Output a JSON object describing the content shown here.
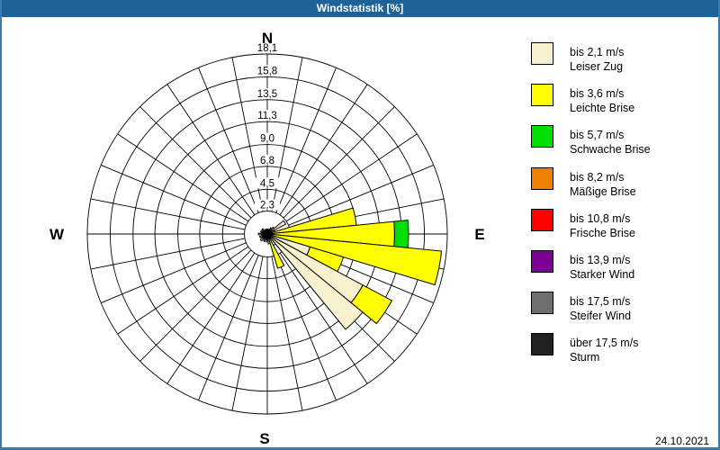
{
  "title_bar": {
    "title": "Windstatistik [%]"
  },
  "footer": {
    "date": "24.10.2021"
  },
  "chart_data": {
    "type": "windrose",
    "title": "Windstatistik [%]",
    "units": "%",
    "sector_width_deg": 11.25,
    "rmax": 18.1,
    "ring_values": [
      2.3,
      4.5,
      6.8,
      9.0,
      11.3,
      13.5,
      15.8,
      18.1
    ],
    "ring_labels": [
      "2,3",
      "4,5",
      "6,8",
      "9,0",
      "11,3",
      "13,5",
      "15,8",
      "18,1"
    ],
    "compass_labels": {
      "n": "N",
      "e": "E",
      "s": "S",
      "w": "W"
    },
    "grid_line_step_deg": 11.25,
    "legend_position": "right",
    "speed_classes": [
      {
        "speed": "bis 2,1 m/s",
        "name": "Leiser Zug",
        "color": "#f7f1cf"
      },
      {
        "speed": "bis 3,6 m/s",
        "name": "Leichte Brise",
        "color": "#ffff00"
      },
      {
        "speed": "bis 5,7 m/s",
        "name": "Schwache Brise",
        "color": "#00e000"
      },
      {
        "speed": "bis 8,2 m/s",
        "name": "Mäßige Brise",
        "color": "#f08000"
      },
      {
        "speed": "bis 10,8 m/s",
        "name": "Frische Brise",
        "color": "#ff0000"
      },
      {
        "speed": "bis 13,9 m/s",
        "name": "Starker Wind",
        "color": "#7d0094"
      },
      {
        "speed": "bis 17,5 m/s",
        "name": "Steifer Wind",
        "color": "#6f6f6f"
      },
      {
        "speed": "über 17,5 m/s",
        "name": "Sturm",
        "color": "#212121"
      }
    ],
    "sectors": [
      {
        "deg": 0.0,
        "segments": [
          [
            0,
            0.5
          ]
        ]
      },
      {
        "deg": 11.25,
        "segments": [
          [
            0,
            0.4
          ]
        ]
      },
      {
        "deg": 22.5,
        "segments": [
          [
            0,
            0.5
          ]
        ]
      },
      {
        "deg": 33.75,
        "segments": [
          [
            0,
            0.7
          ]
        ]
      },
      {
        "deg": 45.0,
        "segments": [
          [
            0,
            0.9
          ]
        ]
      },
      {
        "deg": 56.25,
        "segments": [
          [
            0,
            2.1
          ]
        ]
      },
      {
        "deg": 67.5,
        "segments": [
          [
            0,
            0.8
          ]
        ]
      },
      {
        "deg": 78.75,
        "segments": [
          [
            0,
            0.4
          ],
          [
            1,
            9.0
          ]
        ]
      },
      {
        "deg": 90.0,
        "segments": [
          [
            0,
            0.5
          ],
          [
            1,
            12.8
          ],
          [
            2,
            14.2
          ]
        ]
      },
      {
        "deg": 101.25,
        "segments": [
          [
            0,
            0.5
          ],
          [
            1,
            17.6
          ]
        ]
      },
      {
        "deg": 112.5,
        "segments": [
          [
            0,
            4.5
          ],
          [
            1,
            8.0
          ]
        ]
      },
      {
        "deg": 123.75,
        "segments": [
          [
            0,
            10.9
          ],
          [
            1,
            14.2
          ]
        ]
      },
      {
        "deg": 135.0,
        "segments": [
          [
            0,
            12.4
          ]
        ]
      },
      {
        "deg": 146.25,
        "segments": [
          [
            0,
            1.3
          ]
        ]
      },
      {
        "deg": 157.5,
        "segments": [
          [
            0,
            0.5
          ],
          [
            1,
            3.6
          ]
        ]
      },
      {
        "deg": 168.75,
        "segments": [
          [
            0,
            1.0
          ]
        ]
      },
      {
        "deg": 180.0,
        "segments": [
          [
            0,
            0.8
          ]
        ]
      },
      {
        "deg": 191.25,
        "segments": [
          [
            0,
            0.6
          ]
        ]
      },
      {
        "deg": 202.5,
        "segments": [
          [
            0,
            0.8
          ]
        ]
      },
      {
        "deg": 213.75,
        "segments": [
          [
            0,
            0.6
          ]
        ]
      },
      {
        "deg": 225.0,
        "segments": [
          [
            0,
            0.9
          ]
        ]
      },
      {
        "deg": 236.25,
        "segments": [
          [
            0,
            0.6
          ]
        ]
      },
      {
        "deg": 247.5,
        "segments": [
          [
            0,
            0.8
          ]
        ]
      },
      {
        "deg": 258.75,
        "segments": [
          [
            0,
            0.6
          ]
        ]
      },
      {
        "deg": 270.0,
        "segments": [
          [
            0,
            0.9
          ]
        ]
      },
      {
        "deg": 281.25,
        "segments": [
          [
            0,
            0.6
          ]
        ]
      },
      {
        "deg": 292.5,
        "segments": [
          [
            0,
            0.7
          ]
        ]
      },
      {
        "deg": 303.75,
        "segments": [
          [
            0,
            0.5
          ]
        ]
      },
      {
        "deg": 315.0,
        "segments": [
          [
            0,
            0.7
          ]
        ]
      },
      {
        "deg": 326.25,
        "segments": [
          [
            0,
            0.4
          ]
        ]
      },
      {
        "deg": 337.5,
        "segments": [
          [
            0,
            0.5
          ]
        ]
      },
      {
        "deg": 348.75,
        "segments": [
          [
            0,
            0.4
          ]
        ]
      }
    ]
  }
}
